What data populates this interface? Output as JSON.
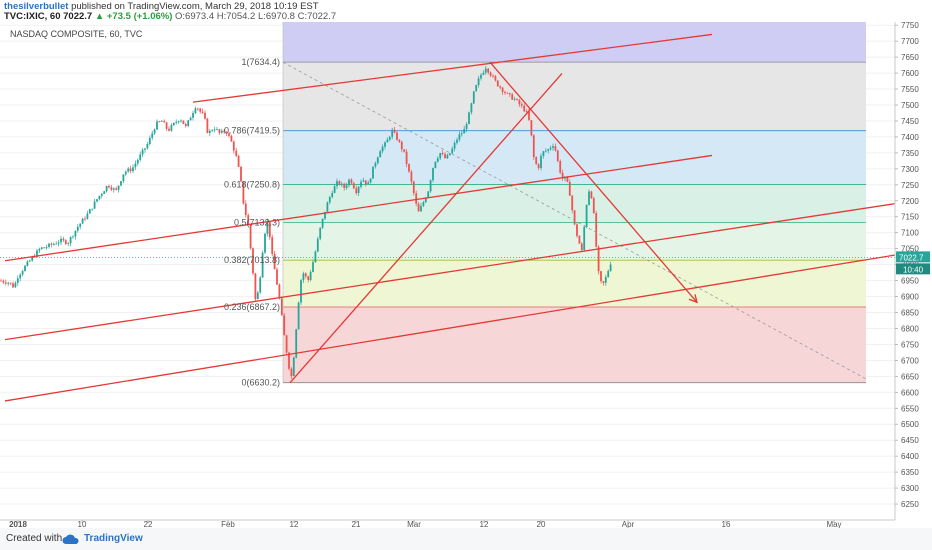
{
  "header": {
    "author": "thesilverbullet",
    "published": "published on TradingView.com, March 29, 2018 10:19 EST",
    "symbol": "TVC:IXIC, 60",
    "last": "7022.7",
    "change": "▲ +73.5 (+1.06%)",
    "ohlc": [
      "O:6973.4",
      "H:7054.2",
      "L:6970.8",
      "C:7022.7"
    ]
  },
  "footer": {
    "created": "Created with",
    "brand": "TradingView"
  },
  "colors": {
    "up": "#26a69a",
    "down": "#ef5350",
    "trend": "#e53935",
    "fib_top": "#cfcdf3",
    "fib_1": "#e6e6e6",
    "fib_786": "#d4e8f6",
    "fib_618": "#d8f0e6",
    "fib_5": "#e4f5e8",
    "fib_382": "#eef6d4",
    "fib_236": "#f6d6d6"
  },
  "chart_data": {
    "type": "candlestick",
    "title": "NASDAQ COMPOSITE, 60, TVC",
    "ylim": [
      6200,
      7760
    ],
    "yticks": [
      6250,
      6300,
      6350,
      6400,
      6450,
      6500,
      6550,
      6600,
      6650,
      6700,
      6750,
      6800,
      6850,
      6900,
      6950,
      7000,
      7050,
      7100,
      7150,
      7200,
      7250,
      7300,
      7350,
      7400,
      7450,
      7500,
      7550,
      7600,
      7650,
      7700,
      7750
    ],
    "xlabels": [
      "2018",
      "10",
      "22",
      "Feb",
      "12",
      "21",
      "Mar",
      "12",
      "20",
      "Apr",
      "16",
      "May"
    ],
    "price_badges": [
      "7022.7",
      "10:40"
    ],
    "fib_levels": [
      {
        "label": "1(7634.4)",
        "value": 7634.4
      },
      {
        "label": "0.786(7419.5)",
        "value": 7419.5
      },
      {
        "label": "0.618(7250.8)",
        "value": 7250.8
      },
      {
        "label": "0.5(7132.3)",
        "value": 7132.3
      },
      {
        "label": "0.382(7013.8)",
        "value": 7013.8
      },
      {
        "label": "0.236(6867.2)",
        "value": 6867.2
      },
      {
        "label": "0(6630.2)",
        "value": 6630.2
      }
    ],
    "fib_extension_top": 7760,
    "path": [
      [
        0,
        6950
      ],
      [
        8,
        6945
      ],
      [
        14,
        6930
      ],
      [
        18,
        6965
      ],
      [
        24,
        6990
      ],
      [
        32,
        7020
      ],
      [
        40,
        7050
      ],
      [
        50,
        7060
      ],
      [
        60,
        7075
      ],
      [
        68,
        7070
      ],
      [
        78,
        7120
      ],
      [
        88,
        7160
      ],
      [
        98,
        7210
      ],
      [
        108,
        7250
      ],
      [
        116,
        7230
      ],
      [
        124,
        7290
      ],
      [
        132,
        7300
      ],
      [
        140,
        7340
      ],
      [
        148,
        7380
      ],
      [
        156,
        7440
      ],
      [
        162,
        7450
      ],
      [
        168,
        7420
      ],
      [
        174,
        7440
      ],
      [
        180,
        7460
      ],
      [
        186,
        7430
      ],
      [
        190,
        7460
      ],
      [
        196,
        7500
      ],
      [
        200,
        7480
      ],
      [
        204,
        7465
      ],
      [
        208,
        7410
      ],
      [
        214,
        7430
      ],
      [
        220,
        7410
      ],
      [
        226,
        7420
      ],
      [
        232,
        7380
      ],
      [
        236,
        7340
      ],
      [
        240,
        7280
      ],
      [
        244,
        7180
      ],
      [
        248,
        7130
      ],
      [
        252,
        7010
      ],
      [
        256,
        6870
      ],
      [
        260,
        6960
      ],
      [
        264,
        7090
      ],
      [
        268,
        7140
      ],
      [
        272,
        7030
      ],
      [
        276,
        6960
      ],
      [
        280,
        6880
      ],
      [
        284,
        6780
      ],
      [
        288,
        6700
      ],
      [
        291,
        6640
      ],
      [
        294,
        6720
      ],
      [
        298,
        6870
      ],
      [
        302,
        6980
      ],
      [
        308,
        6950
      ],
      [
        314,
        7020
      ],
      [
        320,
        7110
      ],
      [
        326,
        7180
      ],
      [
        332,
        7230
      ],
      [
        338,
        7260
      ],
      [
        344,
        7240
      ],
      [
        350,
        7270
      ],
      [
        356,
        7230
      ],
      [
        362,
        7270
      ],
      [
        368,
        7250
      ],
      [
        374,
        7310
      ],
      [
        380,
        7360
      ],
      [
        386,
        7380
      ],
      [
        392,
        7420
      ],
      [
        398,
        7390
      ],
      [
        404,
        7350
      ],
      [
        408,
        7300
      ],
      [
        412,
        7250
      ],
      [
        418,
        7160
      ],
      [
        424,
        7200
      ],
      [
        428,
        7230
      ],
      [
        434,
        7320
      ],
      [
        440,
        7350
      ],
      [
        446,
        7330
      ],
      [
        452,
        7360
      ],
      [
        458,
        7400
      ],
      [
        464,
        7420
      ],
      [
        470,
        7480
      ],
      [
        474,
        7540
      ],
      [
        480,
        7590
      ],
      [
        486,
        7620
      ],
      [
        490,
        7600
      ],
      [
        496,
        7570
      ],
      [
        502,
        7550
      ],
      [
        508,
        7530
      ],
      [
        514,
        7520
      ],
      [
        520,
        7500
      ],
      [
        526,
        7480
      ],
      [
        530,
        7440
      ],
      [
        534,
        7330
      ],
      [
        538,
        7300
      ],
      [
        542,
        7350
      ],
      [
        548,
        7360
      ],
      [
        554,
        7380
      ],
      [
        558,
        7320
      ],
      [
        562,
        7270
      ],
      [
        566,
        7270
      ],
      [
        570,
        7220
      ],
      [
        574,
        7130
      ],
      [
        578,
        7080
      ],
      [
        582,
        7040
      ],
      [
        586,
        7180
      ],
      [
        590,
        7250
      ],
      [
        594,
        7150
      ],
      [
        598,
        6980
      ],
      [
        602,
        6930
      ],
      [
        606,
        6960
      ],
      [
        610,
        7000
      ],
      [
        612,
        7020
      ]
    ],
    "trendlines": [
      {
        "name": "upper",
        "from": [
          193,
          7509
        ],
        "to": [
          712,
          7721
        ]
      },
      {
        "name": "middle",
        "from": [
          5,
          7012
        ],
        "to": [
          712,
          7342
        ]
      },
      {
        "name": "lower1",
        "from": [
          5,
          6765
        ],
        "to": [
          895,
          7191
        ]
      },
      {
        "name": "lower2",
        "from": [
          5,
          6573
        ],
        "to": [
          895,
          7030
        ]
      },
      {
        "name": "rise",
        "from": [
          290,
          6630
        ],
        "to": [
          562,
          7599
        ]
      },
      {
        "name": "fall",
        "from": [
          490,
          7634
        ],
        "to": [
          697,
          6882
        ]
      }
    ],
    "diagonal_dashed": {
      "from": [
        283,
        7634
      ],
      "to": [
        866,
        6642
      ]
    }
  }
}
